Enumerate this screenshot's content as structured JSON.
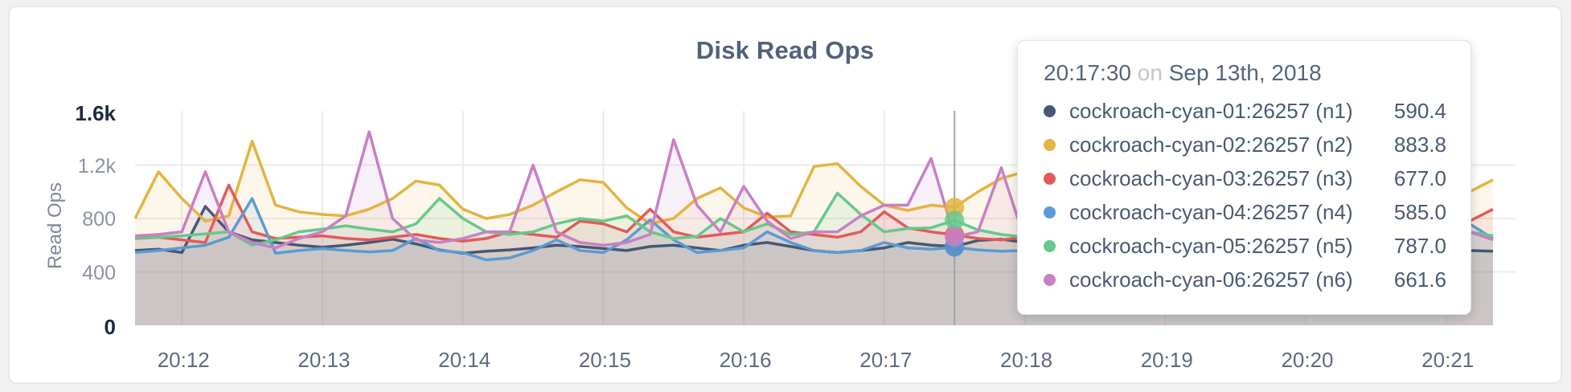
{
  "card": {
    "type": "metric-graph"
  },
  "tooltip": {
    "time": "20:17:30",
    "separator": "on",
    "date": "Sep 13th, 2018",
    "rows": [
      {
        "name": "cockroach-cyan-01:26257 (n1)",
        "value": "590.4",
        "color": "#475872"
      },
      {
        "name": "cockroach-cyan-02:26257 (n2)",
        "value": "883.8",
        "color": "#e3b440"
      },
      {
        "name": "cockroach-cyan-03:26257 (n3)",
        "value": "677.0",
        "color": "#e15b5b"
      },
      {
        "name": "cockroach-cyan-04:26257 (n4)",
        "value": "585.0",
        "color": "#5b9bd3"
      },
      {
        "name": "cockroach-cyan-05:26257 (n5)",
        "value": "787.0",
        "color": "#65c98a"
      },
      {
        "name": "cockroach-cyan-06:26257 (n6)",
        "value": "661.6",
        "color": "#c97fc5"
      }
    ]
  },
  "chart_data": {
    "type": "area",
    "title": "Disk Read Ops",
    "ylabel": "Read Ops",
    "ylim": [
      0,
      1600
    ],
    "grid": true,
    "legend_position": "tooltip",
    "x_start": "20:11:40",
    "x_interval_seconds": 10,
    "x_ticks": [
      {
        "label": "20:12",
        "index": 2
      },
      {
        "label": "20:13",
        "index": 8
      },
      {
        "label": "20:14",
        "index": 14
      },
      {
        "label": "20:15",
        "index": 20
      },
      {
        "label": "20:16",
        "index": 26
      },
      {
        "label": "20:17",
        "index": 32
      },
      {
        "label": "20:18",
        "index": 38
      },
      {
        "label": "20:19",
        "index": 44
      },
      {
        "label": "20:20",
        "index": 50
      },
      {
        "label": "20:21",
        "index": 56
      }
    ],
    "y_ticks": [
      {
        "label": "1.6k",
        "value": 1600,
        "grid": false,
        "emphasis": true
      },
      {
        "label": "1.2k",
        "value": 1200,
        "grid": true,
        "emphasis": false
      },
      {
        "label": "800",
        "value": 800,
        "grid": true,
        "emphasis": false
      },
      {
        "label": "400",
        "value": 400,
        "grid": true,
        "emphasis": false
      },
      {
        "label": "0",
        "value": 0,
        "grid": false,
        "emphasis": true
      }
    ],
    "hover": {
      "index": 35,
      "time": "20:17:30",
      "date": "Sep 13th, 2018"
    },
    "series": [
      {
        "name": "cockroach-cyan-01:26257 (n1)",
        "short": "n1",
        "color": "#475872",
        "values": [
          560,
          570,
          545,
          890,
          700,
          640,
          620,
          600,
          585,
          600,
          620,
          645,
          610,
          565,
          540,
          555,
          565,
          580,
          600,
          590,
          575,
          560,
          590,
          600,
          580,
          560,
          600,
          620,
          590,
          560,
          545,
          560,
          580,
          620,
          600,
          590.4,
          635,
          645,
          620,
          600,
          580,
          570,
          560,
          575,
          590,
          580,
          570,
          560,
          575,
          585,
          570,
          560,
          555,
          565,
          575,
          560,
          570,
          560,
          555
        ]
      },
      {
        "name": "cockroach-cyan-02:26257 (n2)",
        "short": "n2",
        "color": "#e3b440",
        "values": [
          800,
          1150,
          950,
          780,
          820,
          1380,
          900,
          850,
          830,
          820,
          870,
          950,
          1080,
          1050,
          870,
          800,
          830,
          900,
          1000,
          1090,
          1070,
          880,
          760,
          800,
          950,
          1030,
          880,
          810,
          820,
          1190,
          1210,
          1040,
          900,
          860,
          900,
          883.8,
          1000,
          1100,
          1150,
          1000,
          880,
          840,
          820,
          850,
          830,
          810,
          840,
          860,
          830,
          820,
          840,
          860,
          840,
          830,
          850,
          860,
          830,
          1000,
          1090
        ]
      },
      {
        "name": "cockroach-cyan-03:26257 (n3)",
        "short": "n3",
        "color": "#e15b5b",
        "values": [
          650,
          660,
          640,
          620,
          1050,
          700,
          650,
          660,
          670,
          650,
          640,
          660,
          680,
          650,
          630,
          650,
          700,
          680,
          660,
          780,
          760,
          700,
          870,
          700,
          660,
          680,
          700,
          840,
          700,
          680,
          660,
          700,
          850,
          730,
          700,
          677,
          650,
          640,
          660,
          680,
          660,
          650,
          660,
          670,
          650,
          660,
          670,
          650,
          640,
          660,
          670,
          660,
          650,
          640,
          650,
          660,
          650,
          780,
          870
        ]
      },
      {
        "name": "cockroach-cyan-04:26257 (n4)",
        "short": "n4",
        "color": "#5b9bd3",
        "values": [
          545,
          560,
          580,
          600,
          660,
          950,
          540,
          560,
          575,
          560,
          550,
          560,
          650,
          560,
          545,
          490,
          505,
          560,
          640,
          560,
          545,
          640,
          790,
          640,
          545,
          560,
          580,
          700,
          620,
          560,
          545,
          560,
          620,
          580,
          570,
          585,
          565,
          555,
          560,
          570,
          560,
          555,
          560,
          570,
          560,
          555,
          565,
          570,
          560,
          555,
          560,
          570,
          560,
          555,
          560,
          580,
          620,
          760,
          650
        ]
      },
      {
        "name": "cockroach-cyan-05:26257 (n5)",
        "short": "n5",
        "color": "#65c98a",
        "values": [
          655,
          660,
          670,
          685,
          700,
          600,
          640,
          700,
          720,
          745,
          720,
          700,
          760,
          950,
          800,
          700,
          680,
          700,
          760,
          800,
          780,
          820,
          700,
          650,
          665,
          800,
          700,
          760,
          680,
          700,
          990,
          830,
          700,
          725,
          730,
          787,
          715,
          680,
          660,
          670,
          680,
          670,
          660,
          670,
          680,
          670,
          660,
          670,
          680,
          670,
          660,
          670,
          680,
          670,
          660,
          670,
          680,
          700,
          670
        ]
      },
      {
        "name": "cockroach-cyan-06:26257 (n6)",
        "short": "n6",
        "color": "#c97fc5",
        "values": [
          670,
          680,
          700,
          1150,
          700,
          620,
          580,
          650,
          700,
          820,
          1450,
          800,
          640,
          620,
          650,
          700,
          700,
          1200,
          700,
          620,
          600,
          620,
          680,
          1390,
          900,
          700,
          1040,
          780,
          650,
          700,
          700,
          820,
          900,
          900,
          1250,
          661.6,
          700,
          1180,
          640,
          660,
          680,
          660,
          650,
          660,
          670,
          660,
          650,
          660,
          670,
          660,
          650,
          660,
          670,
          660,
          650,
          660,
          670,
          700,
          640
        ]
      }
    ]
  }
}
